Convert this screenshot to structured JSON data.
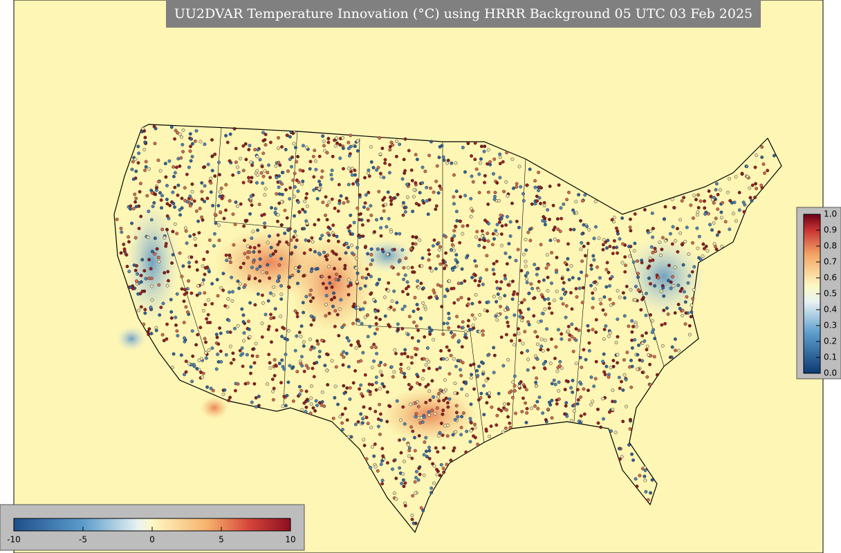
{
  "title": "UU2DVAR Temperature Innovation (°C) using HRRR Background 05 UTC 03 Feb 2025",
  "horizontal_colorbar": {
    "lim": [
      -10,
      10
    ],
    "ticks": [
      -10,
      -5,
      0,
      5,
      10
    ]
  },
  "vertical_colorbar": {
    "lim": [
      0,
      1
    ],
    "ticks": [
      {
        "value": 0,
        "label": "0.0"
      },
      {
        "value": 0.1,
        "label": "0.1"
      },
      {
        "value": 0.2,
        "label": "0.2"
      },
      {
        "value": 0.3,
        "label": "0.3"
      },
      {
        "value": 0.4,
        "label": "0.4"
      },
      {
        "value": 0.5,
        "label": "0.5"
      },
      {
        "value": 0.6,
        "label": "0.6"
      },
      {
        "value": 0.7,
        "label": "0.7"
      },
      {
        "value": 0.8,
        "label": "0.8"
      },
      {
        "value": 0.9,
        "label": "0.9"
      },
      {
        "value": 1,
        "label": "1.0"
      }
    ]
  }
}
